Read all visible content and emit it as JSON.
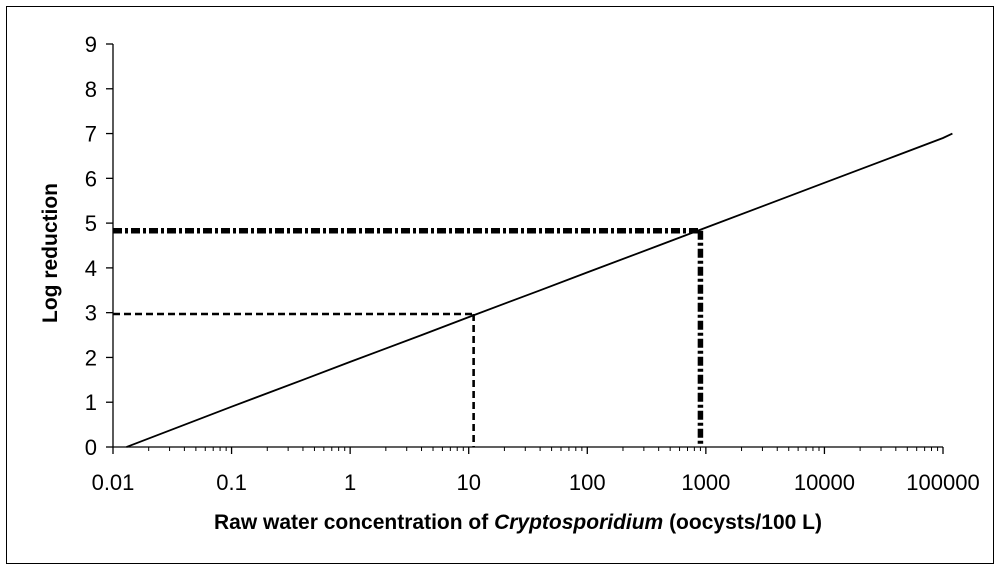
{
  "chart_data": {
    "type": "line",
    "x_scale": "log",
    "xlim": [
      0.01,
      100000
    ],
    "ylim": [
      0,
      9
    ],
    "grid": false,
    "legend": "none",
    "xlabel_parts": [
      "Raw water concentration of ",
      "Cryptosporidium",
      " (oocysts/100 L)"
    ],
    "ylabel": "Log reduction",
    "x_ticks": [
      0.01,
      0.1,
      1,
      10,
      100,
      1000,
      10000,
      100000
    ],
    "x_tick_labels": [
      "0.01",
      "0.1",
      "1",
      "10",
      "100",
      "1000",
      "10000",
      "100000"
    ],
    "y_ticks": [
      0,
      1,
      2,
      3,
      4,
      5,
      6,
      7,
      8,
      9
    ],
    "y_tick_labels": [
      "0",
      "1",
      "2",
      "3",
      "4",
      "5",
      "6",
      "7",
      "8",
      "9"
    ],
    "series": [
      {
        "style": "solid",
        "x": [
          0.013,
          0.1,
          0.4,
          1,
          4,
          10,
          40,
          100,
          400,
          1000,
          4000,
          10000,
          40000,
          100000,
          120000
        ],
        "y": [
          0,
          0.9,
          1.5,
          1.9,
          2.5,
          2.9,
          3.5,
          3.9,
          4.5,
          4.9,
          5.5,
          5.9,
          6.5,
          6.9,
          7.0
        ]
      }
    ],
    "reference_lines": [
      {
        "style": "dashed",
        "x": 11,
        "y": 2.97
      },
      {
        "style": "dash-dot",
        "x": 900,
        "y": 4.83
      }
    ]
  }
}
